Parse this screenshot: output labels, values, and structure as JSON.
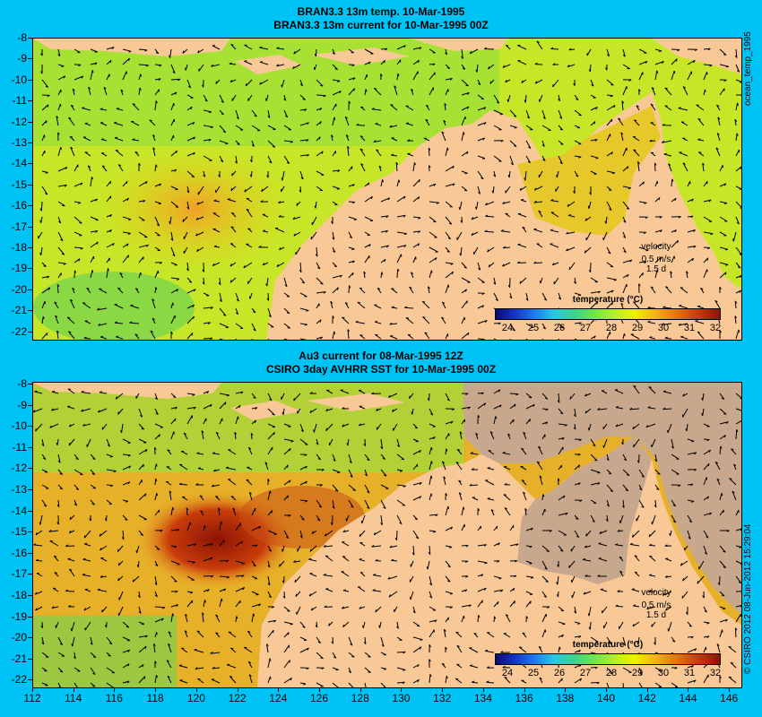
{
  "top_panel": {
    "title_line1": "BRAN3.3 13m temp. 10-Mar-1995",
    "title_line2": "BRAN3.3 13m current for 10-Mar-1995 00Z",
    "side_label": "ocean_temp_1995",
    "velocity_title": "velocity",
    "velocity_scale": "0.5 m/s",
    "velocity_period": "1.5 d",
    "colorbar_title": "temperature (°C)"
  },
  "bottom_panel": {
    "title_line1": "Au3 current for 08-Mar-1995 12Z",
    "title_line2": "CSIRO 3day AVHRR SST for 10-Mar-1995 00Z",
    "side_label": "© CSIRO 2012  08-Jun-2012 15:29:04",
    "velocity_title": "velocity",
    "velocity_scale": "0.5 m/s",
    "velocity_period": "1.5 d",
    "colorbar_title": "temperature (°C)"
  },
  "y_ticks": [
    "-8",
    "-9",
    "-10",
    "-11",
    "-12",
    "-13",
    "-14",
    "-15",
    "-16",
    "-17",
    "-18",
    "-19",
    "-20",
    "-21",
    "-22"
  ],
  "x_ticks": [
    "112",
    "114",
    "116",
    "118",
    "120",
    "122",
    "124",
    "126",
    "128",
    "130",
    "132",
    "134",
    "136",
    "138",
    "140",
    "142",
    "144",
    "146"
  ],
  "colorbar_ticks": [
    "24",
    "25",
    "26",
    "27",
    "28",
    "29",
    "30",
    "31",
    "32"
  ],
  "colors": {
    "background": "#00c3f5",
    "land": "#f8c896",
    "no_data": "#c8a88c",
    "arrow": "#000000"
  }
}
